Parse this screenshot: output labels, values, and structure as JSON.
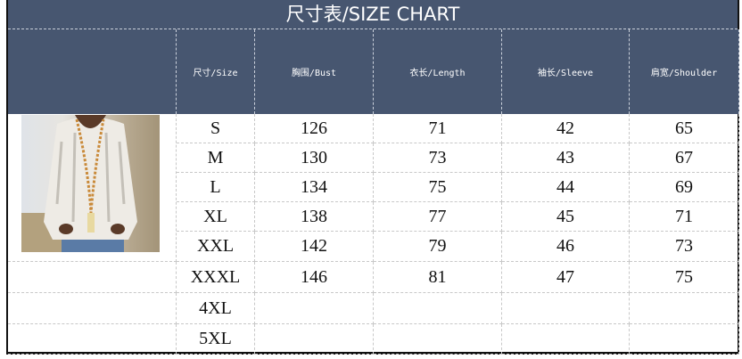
{
  "title": "尺寸表/SIZE CHART",
  "colors": {
    "header_bg": "#475670",
    "header_text": "#ffffff"
  },
  "columns": [
    "尺寸/Size",
    "胸围/Bust",
    "衣长/Length",
    "袖长/Sleeve",
    "肩宽/Shoulder"
  ],
  "rows": [
    [
      "S",
      "126",
      "71",
      "42",
      "65"
    ],
    [
      "M",
      "130",
      "73",
      "43",
      "67"
    ],
    [
      "L",
      "134",
      "75",
      "44",
      "69"
    ],
    [
      "XL",
      "138",
      "77",
      "45",
      "71"
    ],
    [
      "XXL",
      "142",
      "79",
      "46",
      "73"
    ],
    [
      "XXXL",
      "146",
      "81",
      "47",
      "75"
    ],
    [
      "4XL",
      "",
      "",
      "",
      ""
    ],
    [
      "5XL",
      "",
      "",
      "",
      ""
    ]
  ],
  "image": {
    "alt": "product-photo-white-cable-knit-hooded-sweater"
  }
}
